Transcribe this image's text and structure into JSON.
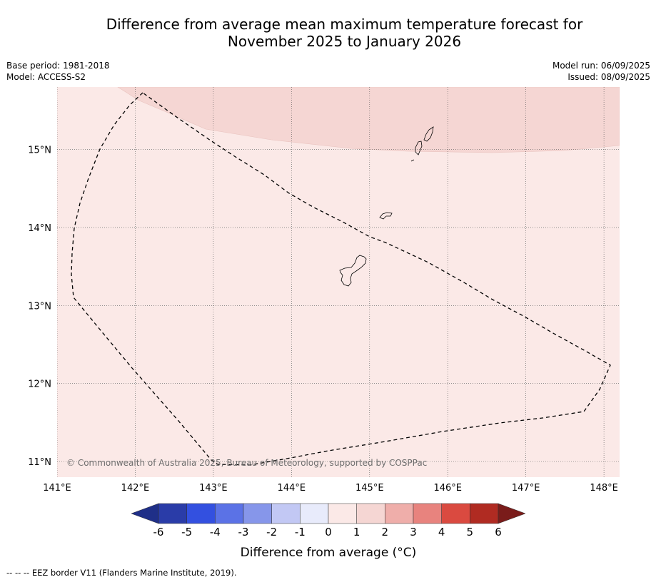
{
  "title_line1": "Difference from average mean maximum temperature forecast for",
  "title_line2": "November 2025 to January 2026",
  "base_period": "Base period: 1981-2018",
  "model": "Model: ACCESS-S2",
  "model_run": "Model run: 06/09/2025",
  "issued": "Issued: 08/09/2025",
  "copyright": "© Commonwealth of Australia 2025, Bureau of Meteorology, supported by COSPPac",
  "footnote": "--  --  -- EEZ border V11 (Flanders Marine Institute, 2019).",
  "map": {
    "lon_range": [
      141,
      148.2
    ],
    "lat_range": [
      10.8,
      15.8
    ],
    "lon_ticks": [
      {
        "value": 141,
        "label": "141°E"
      },
      {
        "value": 142,
        "label": "142°E"
      },
      {
        "value": 143,
        "label": "143°E"
      },
      {
        "value": 144,
        "label": "144°E"
      },
      {
        "value": 145,
        "label": "145°E"
      },
      {
        "value": 146,
        "label": "146°E"
      },
      {
        "value": 147,
        "label": "147°E"
      },
      {
        "value": 148,
        "label": "148°E"
      }
    ],
    "lat_ticks": [
      {
        "value": 15,
        "label": "15°N"
      },
      {
        "value": 14,
        "label": "14°N"
      },
      {
        "value": 13,
        "label": "13°N"
      },
      {
        "value": 12,
        "label": "12°N"
      },
      {
        "value": 11,
        "label": "11°N"
      }
    ],
    "background_color": "#fbe9e7",
    "warm_region_color": "#f5d6d3",
    "warm_region_category": "1 to 2",
    "base_region_category": "0 to 1"
  },
  "colorbar": {
    "title": "Difference from average (°C)",
    "ticks": [
      "-6",
      "-5",
      "-4",
      "-3",
      "-2",
      "-1",
      "0",
      "1",
      "2",
      "3",
      "4",
      "5",
      "6"
    ],
    "under_color": "#1f2f88",
    "over_color": "#7a1c1a",
    "colors": [
      "#2a3ca8",
      "#3350e0",
      "#5b72e6",
      "#8696ea",
      "#c2c8f4",
      "#e8ebfb",
      "#fbe9e7",
      "#f5d6d3",
      "#efaeaa",
      "#e8837e",
      "#da4a40",
      "#b02b22"
    ]
  }
}
